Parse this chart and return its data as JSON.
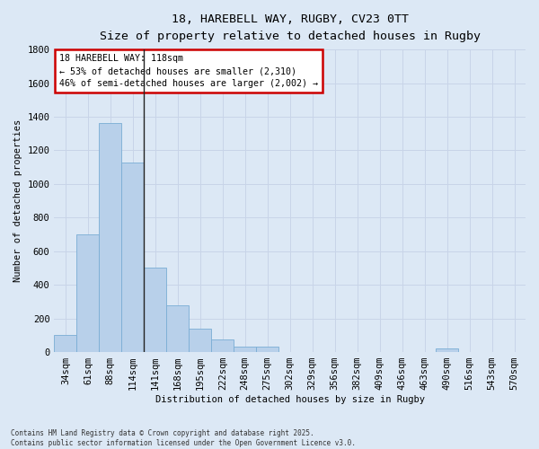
{
  "title_line1": "18, HAREBELL WAY, RUGBY, CV23 0TT",
  "title_line2": "Size of property relative to detached houses in Rugby",
  "xlabel": "Distribution of detached houses by size in Rugby",
  "ylabel": "Number of detached properties",
  "categories": [
    "34sqm",
    "61sqm",
    "88sqm",
    "114sqm",
    "141sqm",
    "168sqm",
    "195sqm",
    "222sqm",
    "248sqm",
    "275sqm",
    "302sqm",
    "329sqm",
    "356sqm",
    "382sqm",
    "409sqm",
    "436sqm",
    "463sqm",
    "490sqm",
    "516sqm",
    "543sqm",
    "570sqm"
  ],
  "values": [
    100,
    700,
    1360,
    1130,
    500,
    280,
    140,
    75,
    35,
    30,
    0,
    0,
    0,
    0,
    0,
    0,
    0,
    20,
    0,
    0,
    0
  ],
  "bar_color": "#b8d0ea",
  "bar_edge_color": "#7aadd4",
  "vline_x_index": 3,
  "annotation_title": "18 HAREBELL WAY: 118sqm",
  "annotation_line2": "← 53% of detached houses are smaller (2,310)",
  "annotation_line3": "46% of semi-detached houses are larger (2,002) →",
  "annotation_box_color": "#ffffff",
  "annotation_box_edge": "#cc0000",
  "ylim": [
    0,
    1800
  ],
  "yticks": [
    0,
    200,
    400,
    600,
    800,
    1000,
    1200,
    1400,
    1600,
    1800
  ],
  "grid_color": "#c8d4e8",
  "bg_color": "#dce8f5",
  "footer_line1": "Contains HM Land Registry data © Crown copyright and database right 2025.",
  "footer_line2": "Contains public sector information licensed under the Open Government Licence v3.0."
}
